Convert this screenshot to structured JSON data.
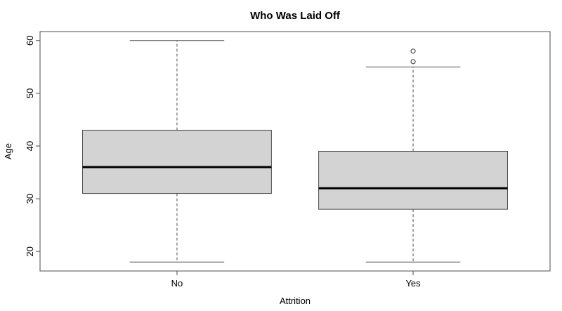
{
  "figure": {
    "background": "#ffffff"
  },
  "chart_data": {
    "type": "boxplot",
    "title": "Who Was Laid Off",
    "xlabel": "Attrition",
    "ylabel": "Age",
    "ylim": [
      16.3,
      61.7
    ],
    "yticks": [
      20,
      30,
      40,
      50,
      60
    ],
    "categories": [
      "No",
      "Yes"
    ],
    "boxes": [
      {
        "label": "No",
        "whisker_low": 18,
        "q1": 31,
        "median": 36,
        "q3": 43,
        "whisker_high": 60,
        "outliers": []
      },
      {
        "label": "Yes",
        "whisker_low": 18,
        "q1": 28,
        "median": 32,
        "q3": 39,
        "whisker_high": 55,
        "outliers": [
          56,
          58
        ]
      }
    ],
    "style": {
      "box_fill": "#d3d3d3",
      "line_color": "#4d4d4d",
      "median_color": "#000000",
      "text_color": "#000000",
      "background": "#ffffff",
      "grid": "off",
      "legend": "none"
    }
  }
}
